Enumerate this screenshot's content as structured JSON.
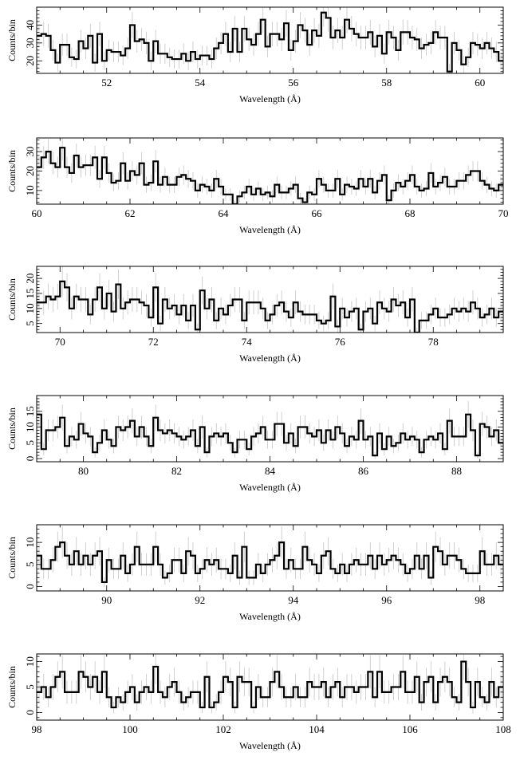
{
  "chart_data": [
    {
      "type": "line",
      "style": "histogram-step with error bars",
      "xlabel": "Wavelength (Å)",
      "ylabel": "Counts/bin",
      "xlim": [
        50.5,
        60.5
      ],
      "ylim": [
        13,
        50
      ],
      "xticks": [
        52,
        54,
        56,
        58,
        60
      ],
      "yticks": [
        20,
        30,
        40
      ],
      "series": [
        {
          "x": [
            50.5,
            51.0,
            51.5,
            52.0,
            52.5,
            53.0,
            53.5,
            54.0,
            54.5,
            55.0,
            55.5,
            56.0,
            56.5,
            57.0,
            57.5,
            58.0,
            58.5,
            59.0,
            59.5,
            60.0,
            60.5
          ],
          "y": [
            30,
            28,
            29,
            26,
            33,
            22,
            21,
            23,
            34,
            32,
            33,
            35,
            38,
            39,
            33,
            30,
            28,
            29,
            27,
            26,
            19
          ]
        }
      ]
    },
    {
      "type": "line",
      "style": "histogram-step with error bars",
      "xlabel": "Wavelength (Å)",
      "ylabel": "Counts/bin",
      "xlim": [
        60,
        70
      ],
      "ylim": [
        3,
        37
      ],
      "xticks": [
        60,
        62,
        64,
        66,
        68,
        70
      ],
      "yticks": [
        10,
        20,
        30
      ],
      "series": [
        {
          "x": [
            60.0,
            60.5,
            61.0,
            61.5,
            62.0,
            62.5,
            63.0,
            63.5,
            64.0,
            64.5,
            65.0,
            65.5,
            66.0,
            66.5,
            67.0,
            67.5,
            68.0,
            68.5,
            69.0,
            69.5,
            70.0
          ],
          "y": [
            27,
            24,
            25,
            22,
            19,
            17,
            14,
            11,
            8,
            9,
            10,
            8,
            10,
            11,
            12,
            13,
            15,
            16,
            15,
            16,
            11
          ]
        }
      ]
    },
    {
      "type": "line",
      "style": "histogram-step with error bars",
      "xlabel": "Wavelength (Å)",
      "ylabel": "Counts/bin",
      "xlim": [
        69.5,
        79.5
      ],
      "ylim": [
        2,
        24
      ],
      "xticks": [
        70,
        72,
        74,
        76,
        78
      ],
      "yticks": [
        5,
        10,
        15,
        20
      ],
      "series": [
        {
          "x": [
            69.5,
            70.0,
            70.5,
            71.0,
            71.5,
            72.0,
            72.5,
            73.0,
            73.5,
            74.0,
            74.5,
            75.0,
            75.5,
            76.0,
            76.5,
            77.0,
            77.5,
            78.0,
            78.5,
            79.0,
            79.5
          ],
          "y": [
            13,
            14,
            13,
            12,
            11,
            10,
            11,
            10,
            9,
            11,
            10,
            9,
            9,
            8,
            9,
            10,
            9,
            8,
            8,
            10,
            8
          ]
        }
      ]
    },
    {
      "type": "line",
      "style": "histogram-step with error bars",
      "xlabel": "Wavelength (Å)",
      "ylabel": "Counts/bin",
      "xlim": [
        79,
        89
      ],
      "ylim": [
        -1,
        20
      ],
      "xticks": [
        80,
        82,
        84,
        86,
        88
      ],
      "yticks": [
        0,
        5,
        10,
        15
      ],
      "series": [
        {
          "x": [
            79.0,
            79.5,
            80.0,
            80.5,
            81.0,
            81.5,
            82.0,
            82.5,
            83.0,
            83.5,
            84.0,
            84.5,
            85.0,
            85.5,
            86.0,
            86.5,
            87.0,
            87.5,
            88.0,
            88.5,
            89.0
          ],
          "y": [
            11,
            9,
            8,
            8,
            9,
            7,
            8,
            7,
            7,
            6,
            8,
            7,
            8,
            7,
            6,
            6,
            7,
            7,
            9,
            10,
            5
          ]
        }
      ]
    },
    {
      "type": "line",
      "style": "histogram-step with error bars",
      "xlabel": "Wavelength (Å)",
      "ylabel": "Counts/bin",
      "xlim": [
        88.5,
        98.5
      ],
      "ylim": [
        -1,
        14
      ],
      "xticks": [
        90,
        92,
        94,
        96,
        98
      ],
      "yticks": [
        0,
        5,
        10
      ],
      "series": [
        {
          "x": [
            88.5,
            89.0,
            89.5,
            90.0,
            90.5,
            91.0,
            91.5,
            92.0,
            92.5,
            93.0,
            93.5,
            94.0,
            94.5,
            95.0,
            95.5,
            96.0,
            96.5,
            97.0,
            97.5,
            98.0,
            98.5
          ],
          "y": [
            7,
            6,
            6,
            6,
            5,
            5,
            4,
            5,
            6,
            5,
            5,
            6,
            5,
            5,
            5,
            5,
            6,
            5,
            5,
            5,
            6
          ]
        }
      ]
    },
    {
      "type": "line",
      "style": "histogram-step with error bars",
      "xlabel": "Wavelength (Å)",
      "ylabel": "Counts/bin",
      "xlim": [
        98,
        108
      ],
      "ylim": [
        -1.5,
        11.5
      ],
      "xticks": [
        98,
        100,
        102,
        104,
        106,
        108
      ],
      "yticks": [
        0,
        5,
        10
      ],
      "series": [
        {
          "x": [
            98.0,
            98.5,
            99.0,
            99.5,
            100.0,
            100.5,
            101.0,
            101.5,
            102.0,
            102.5,
            103.0,
            103.5,
            104.0,
            104.5,
            105.0,
            105.5,
            106.0,
            106.5,
            107.0,
            107.5,
            108.0
          ],
          "y": [
            5,
            5,
            5,
            5,
            4,
            5,
            4,
            4,
            5,
            5,
            5,
            4,
            4,
            5,
            5,
            5,
            5,
            5,
            5,
            5,
            5
          ]
        }
      ]
    }
  ]
}
